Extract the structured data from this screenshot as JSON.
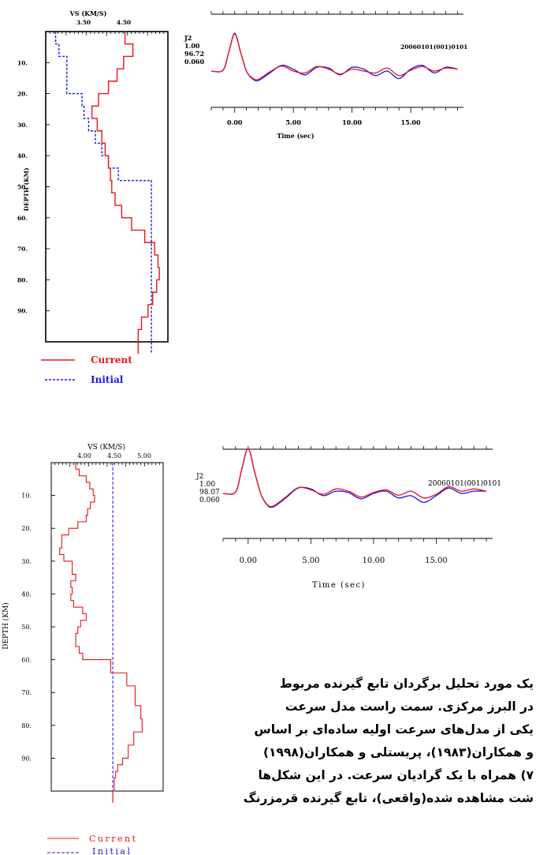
{
  "figure_top": {
    "vs_axis_label": "VS (KM/S)",
    "vs_ticks": [
      "3.50",
      "4.50"
    ],
    "depth_label": "DEPTH (KM)",
    "depth_ticks": [
      "10.",
      "20.",
      "30.",
      "40.",
      "50.",
      "60.",
      "70.",
      "80.",
      "90."
    ],
    "legend_current": "Current",
    "legend_initial": "Initial",
    "station": "J2",
    "rf_values": [
      "1.00",
      "96.72",
      "0.060"
    ],
    "event_id": "20060101(001)0101",
    "time_ticks": [
      "0.00",
      "5.00",
      "10.00",
      "15.00"
    ],
    "time_label": "Time (sec)"
  },
  "figure_bottom": {
    "vs_axis_label": "VS (KM/S)",
    "vs_ticks": [
      "4.00",
      "4.50",
      "5.00"
    ],
    "depth_label": "DEPTH (KM)",
    "depth_ticks": [
      "10.",
      "20.",
      "30.",
      "40.",
      "50.",
      "60.",
      "70.",
      "80.",
      "90."
    ],
    "legend_current": "Current",
    "legend_initial": "Initial",
    "station": "J2",
    "rf_values": [
      "1.00",
      "98.07",
      "0.060"
    ],
    "event_id": "20060101(001)0101",
    "time_ticks": [
      "0.00",
      "5.00",
      "10.00",
      "15.00"
    ],
    "time_label": "Time (sec)"
  },
  "colors": {
    "current": "#e8141c",
    "initial": "#1818e0",
    "observed": "#1818e0",
    "predicted": "#e8141c"
  },
  "caption_lines": [
    "یک مورد تحلیل برگردان تابع گیرنده مربوط",
    "در البرز مرکزی. سمت راست مدل سرعت",
    "یکی از مدل‌های سرعت اولیه ساده‌ای بر اساس",
    "و همکاران(۱۹۸۳)، پریستلی و همکاران(۱۹۹۸)",
    "۷) همراه با یک گرادیان سرعت. در این شکل‌ها",
    "شت مشاهده شده(واقعی)، تابع گیرنده قرمزرنگ"
  ],
  "chart_data": [
    {
      "type": "line",
      "title": "",
      "xlabel": "VS (KM/S)",
      "ylabel": "DEPTH (KM)",
      "xlim": [
        3.1,
        4.95
      ],
      "ylim": [
        100,
        0
      ],
      "series": [
        {
          "name": "Current",
          "steps": [
            [
              0,
              4.3
            ],
            [
              4,
              4.42
            ],
            [
              8,
              4.28
            ],
            [
              12,
              4.18
            ],
            [
              16,
              4.05
            ],
            [
              20,
              3.9
            ],
            [
              24,
              3.8
            ],
            [
              28,
              3.88
            ],
            [
              32,
              3.95
            ],
            [
              36,
              4.0
            ],
            [
              40,
              4.05
            ],
            [
              44,
              4.08
            ],
            [
              48,
              4.1
            ],
            [
              52,
              4.15
            ],
            [
              56,
              4.25
            ],
            [
              60,
              4.4
            ],
            [
              64,
              4.6
            ],
            [
              68,
              4.75
            ],
            [
              72,
              4.8
            ],
            [
              76,
              4.82
            ],
            [
              80,
              4.78
            ],
            [
              84,
              4.72
            ],
            [
              88,
              4.65
            ],
            [
              92,
              4.55
            ],
            [
              96,
              4.5
            ],
            [
              100,
              4.5
            ]
          ]
        },
        {
          "name": "Initial",
          "steps": [
            [
              0,
              3.25
            ],
            [
              4,
              3.3
            ],
            [
              8,
              3.42
            ],
            [
              20,
              3.65
            ],
            [
              24,
              3.68
            ],
            [
              28,
              3.75
            ],
            [
              32,
              3.85
            ],
            [
              36,
              3.95
            ],
            [
              40,
              4.05
            ],
            [
              44,
              4.2
            ],
            [
              48,
              4.7
            ],
            [
              100,
              4.7
            ]
          ]
        }
      ]
    },
    {
      "type": "line",
      "title": "",
      "xlabel": "Time (sec)",
      "xlim": [
        -2,
        19.5
      ],
      "series": [
        {
          "name": "observed",
          "x": [
            -2,
            -1,
            -0.5,
            0,
            0.5,
            1,
            1.5,
            2,
            3,
            4,
            5,
            6,
            7,
            8,
            9,
            10,
            11,
            12,
            13,
            14,
            15,
            16,
            17,
            18,
            19
          ],
          "y": [
            0,
            0.02,
            0.5,
            1.0,
            0.5,
            0.0,
            -0.2,
            -0.25,
            -0.05,
            0.15,
            0.05,
            -0.1,
            0.1,
            0.08,
            -0.1,
            0.1,
            0.05,
            -0.12,
            0.0,
            -0.2,
            0.05,
            0.15,
            -0.05,
            0.1,
            0.05
          ]
        },
        {
          "name": "predicted",
          "x": [
            -2,
            -1,
            -0.5,
            0,
            0.5,
            1,
            1.5,
            2,
            3,
            4,
            5,
            6,
            7,
            8,
            9,
            10,
            11,
            12,
            13,
            14,
            15,
            16,
            17,
            18,
            19
          ],
          "y": [
            0,
            0.02,
            0.5,
            0.98,
            0.5,
            0.0,
            -0.18,
            -0.22,
            -0.02,
            0.13,
            0.0,
            -0.05,
            0.12,
            0.05,
            -0.08,
            0.05,
            0.0,
            -0.05,
            0.08,
            -0.12,
            0.02,
            0.12,
            0.0,
            0.08,
            0.05
          ]
        }
      ]
    },
    {
      "type": "line",
      "title": "",
      "xlabel": "VS (KM/S)",
      "ylabel": "DEPTH (KM)",
      "xlim": [
        3.7,
        5.3
      ],
      "ylim": [
        100,
        0
      ],
      "series": [
        {
          "name": "Current",
          "steps": [
            [
              0,
              4.05
            ],
            [
              2,
              4.1
            ],
            [
              4,
              4.2
            ],
            [
              6,
              4.25
            ],
            [
              8,
              4.3
            ],
            [
              10,
              4.32
            ],
            [
              12,
              4.26
            ],
            [
              14,
              4.22
            ],
            [
              16,
              4.2
            ],
            [
              18,
              4.08
            ],
            [
              20,
              3.95
            ],
            [
              22,
              3.85
            ],
            [
              26,
              3.82
            ],
            [
              28,
              3.88
            ],
            [
              30,
              4.0
            ],
            [
              34,
              4.05
            ],
            [
              36,
              3.98
            ],
            [
              38,
              4.0
            ],
            [
              40,
              3.98
            ],
            [
              42,
              4.02
            ],
            [
              44,
              4.15
            ],
            [
              46,
              4.2
            ],
            [
              48,
              4.12
            ],
            [
              50,
              4.08
            ],
            [
              52,
              4.05
            ],
            [
              56,
              4.1
            ],
            [
              58,
              4.15
            ],
            [
              60,
              4.55
            ],
            [
              64,
              4.78
            ],
            [
              68,
              4.9
            ],
            [
              70,
              4.9
            ],
            [
              74,
              4.98
            ],
            [
              78,
              5.0
            ],
            [
              82,
              4.88
            ],
            [
              86,
              4.8
            ],
            [
              90,
              4.72
            ],
            [
              92,
              4.65
            ],
            [
              94,
              4.62
            ],
            [
              96,
              4.6
            ],
            [
              100,
              4.58
            ]
          ]
        },
        {
          "name": "Initial",
          "steps": [
            [
              0,
              4.58
            ],
            [
              100,
              4.58
            ]
          ]
        }
      ]
    },
    {
      "type": "line",
      "title": "",
      "xlabel": "Time (sec)",
      "xlim": [
        -2,
        19.5
      ],
      "series": [
        {
          "name": "observed",
          "x": [
            -2,
            -1,
            -0.5,
            0,
            0.5,
            1,
            1.5,
            2,
            3,
            4,
            5,
            6,
            7,
            8,
            9,
            10,
            11,
            12,
            13,
            14,
            15,
            16,
            17,
            18,
            19
          ],
          "y": [
            0,
            0.03,
            0.55,
            1.0,
            0.5,
            0.0,
            -0.25,
            -0.3,
            -0.1,
            0.12,
            0.1,
            -0.05,
            0.05,
            0.02,
            -0.12,
            0.0,
            0.05,
            -0.1,
            -0.05,
            -0.2,
            -0.05,
            0.12,
            0.0,
            0.05,
            0.05
          ]
        },
        {
          "name": "predicted",
          "x": [
            -2,
            -1,
            -0.5,
            0,
            0.5,
            1,
            1.5,
            2,
            3,
            4,
            5,
            6,
            7,
            8,
            9,
            10,
            11,
            12,
            13,
            14,
            15,
            16,
            17,
            18,
            19
          ],
          "y": [
            0,
            0.03,
            0.55,
            1.0,
            0.5,
            0.0,
            -0.24,
            -0.28,
            -0.08,
            0.13,
            0.08,
            -0.02,
            0.1,
            0.05,
            -0.08,
            0.02,
            0.08,
            -0.04,
            0.05,
            -0.1,
            -0.02,
            0.15,
            0.05,
            0.1,
            0.05
          ]
        }
      ]
    }
  ]
}
